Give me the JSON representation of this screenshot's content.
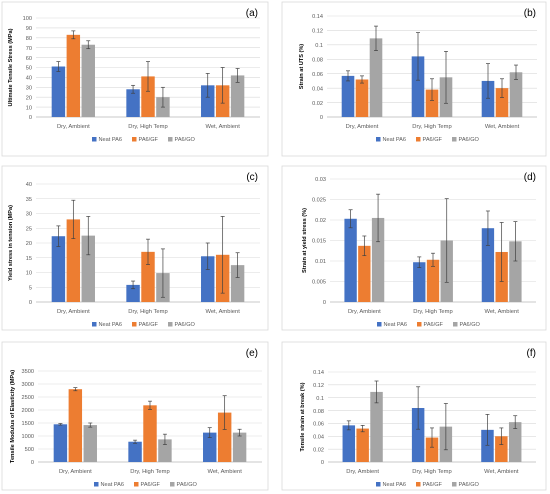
{
  "colors": {
    "neat_pa6": "#4472C4",
    "pa6_gf": "#ED7D31",
    "pa6_go": "#A5A5A5",
    "gridline": "#D9D9D9",
    "axis_text": "#595959",
    "error_bar": "#404040"
  },
  "chart_data": [
    {
      "type": "bar",
      "panel_label": "(a)",
      "title": "",
      "ylabel": "Ultimate Tensile Stress (MPa)",
      "xlabel": "",
      "categories": [
        "Dry, Ambient",
        "Dry, High Temp",
        "Wet, Ambient"
      ],
      "ylim": [
        0,
        100
      ],
      "yticks": [
        "0",
        "10",
        "20",
        "30",
        "40",
        "50",
        "60",
        "70",
        "80",
        "90",
        "100"
      ],
      "grid": true,
      "legend": "bottom",
      "series": [
        {
          "name": "Neat PA6",
          "values": [
            51,
            28,
            32
          ],
          "errors": [
            5,
            4,
            12
          ]
        },
        {
          "name": "PA6/GF",
          "values": [
            83,
            41,
            32
          ],
          "errors": [
            4,
            15,
            18
          ]
        },
        {
          "name": "PA6/GO",
          "values": [
            73,
            20,
            42
          ],
          "errors": [
            4,
            10,
            7
          ]
        }
      ]
    },
    {
      "type": "bar",
      "panel_label": "(b)",
      "title": "",
      "ylabel": "Strain at UTS (%)",
      "xlabel": "",
      "categories": [
        "Dry, Ambient",
        "Dry, High Temp",
        "Wet, Ambient"
      ],
      "ylim": [
        0,
        0.14
      ],
      "yticks": [
        "0",
        "0.02",
        "0.04",
        "0.06",
        "0.08",
        "0.1",
        "0.12",
        "0.14"
      ],
      "grid": true,
      "legend": "bottom",
      "series": [
        {
          "name": "Neat PA6",
          "values": [
            0.057,
            0.084,
            0.05
          ],
          "errors": [
            0.007,
            0.033,
            0.024
          ]
        },
        {
          "name": "PA6/GF",
          "values": [
            0.052,
            0.038,
            0.04
          ],
          "errors": [
            0.005,
            0.015,
            0.013
          ]
        },
        {
          "name": "PA6/GO",
          "values": [
            0.109,
            0.055,
            0.062
          ],
          "errors": [
            0.017,
            0.036,
            0.01
          ]
        }
      ]
    },
    {
      "type": "bar",
      "panel_label": "(c)",
      "title": "",
      "ylabel": "Yield stress in tension (MPa)",
      "xlabel": "",
      "categories": [
        "Dry, Ambient",
        "Dry, High Temp",
        "Wet, Ambient"
      ],
      "ylim": [
        0,
        40
      ],
      "yticks": [
        "0",
        "5",
        "10",
        "15",
        "20",
        "25",
        "30",
        "35",
        "40"
      ],
      "grid": true,
      "legend": "bottom",
      "series": [
        {
          "name": "Neat PA6",
          "values": [
            22.3,
            5.8,
            15.5
          ],
          "errors": [
            3.5,
            1.3,
            4.5
          ]
        },
        {
          "name": "PA6/GF",
          "values": [
            28,
            17,
            16
          ],
          "errors": [
            6.5,
            4.3,
            13
          ]
        },
        {
          "name": "PA6/GO",
          "values": [
            22.5,
            9.8,
            12.5
          ],
          "errors": [
            6.5,
            8.2,
            4.2
          ]
        }
      ]
    },
    {
      "type": "bar",
      "panel_label": "(d)",
      "title": "",
      "ylabel": "Strain at yield stress (%)",
      "xlabel": "",
      "categories": [
        "Dry, Ambient",
        "Dry, High Temp",
        "Wet, Ambient"
      ],
      "ylim": [
        0,
        0.03
      ],
      "yticks": [
        "0",
        "0.005",
        "0.01",
        "0.015",
        "0.02",
        "0.025",
        "0.03"
      ],
      "grid": true,
      "legend": "bottom",
      "series": [
        {
          "name": "Neat PA6",
          "values": [
            0.0203,
            0.0097,
            0.018
          ],
          "errors": [
            0.0022,
            0.0013,
            0.0042
          ]
        },
        {
          "name": "PA6/GF",
          "values": [
            0.0137,
            0.0103,
            0.0122
          ],
          "errors": [
            0.0024,
            0.0016,
            0.0072
          ]
        },
        {
          "name": "PA6/GO",
          "values": [
            0.0205,
            0.015,
            0.0148
          ],
          "errors": [
            0.0058,
            0.0102,
            0.0048
          ]
        }
      ]
    },
    {
      "type": "bar",
      "panel_label": "(e)",
      "title": "",
      "ylabel": "Tensile Modulus of Elasticity (MPa)",
      "xlabel": "",
      "categories": [
        "Dry, Ambient",
        "Dry, High Temp",
        "Wet, Ambient"
      ],
      "ylim": [
        0,
        3500
      ],
      "yticks": [
        "0",
        "500",
        "1000",
        "1500",
        "2000",
        "2500",
        "3000",
        "3500"
      ],
      "grid": true,
      "legend": "bottom",
      "series": [
        {
          "name": "Neat PA6",
          "values": [
            1450,
            780,
            1130
          ],
          "errors": [
            30,
            60,
            190
          ]
        },
        {
          "name": "PA6/GF",
          "values": [
            2800,
            2180,
            1900
          ],
          "errors": [
            60,
            160,
            650
          ]
        },
        {
          "name": "PA6/GO",
          "values": [
            1420,
            870,
            1130
          ],
          "errors": [
            80,
            200,
            130
          ]
        }
      ]
    },
    {
      "type": "bar",
      "panel_label": "(f)",
      "title": "",
      "ylabel": "Tensile strain at break (%)",
      "xlabel": "",
      "categories": [
        "Dry, Ambient",
        "Dry, High Temp",
        "Wet, Ambient"
      ],
      "ylim": [
        0,
        0.14
      ],
      "yticks": [
        "0",
        "0.02",
        "0.04",
        "0.06",
        "0.08",
        "0.1",
        "0.12",
        "0.14"
      ],
      "grid": true,
      "legend": "bottom",
      "series": [
        {
          "name": "Neat PA6",
          "values": [
            0.057,
            0.084,
            0.05
          ],
          "errors": [
            0.007,
            0.033,
            0.024
          ]
        },
        {
          "name": "PA6/GF",
          "values": [
            0.052,
            0.038,
            0.04
          ],
          "errors": [
            0.005,
            0.015,
            0.013
          ]
        },
        {
          "name": "PA6/GO",
          "values": [
            0.109,
            0.055,
            0.062
          ],
          "errors": [
            0.017,
            0.036,
            0.01
          ]
        }
      ]
    }
  ]
}
